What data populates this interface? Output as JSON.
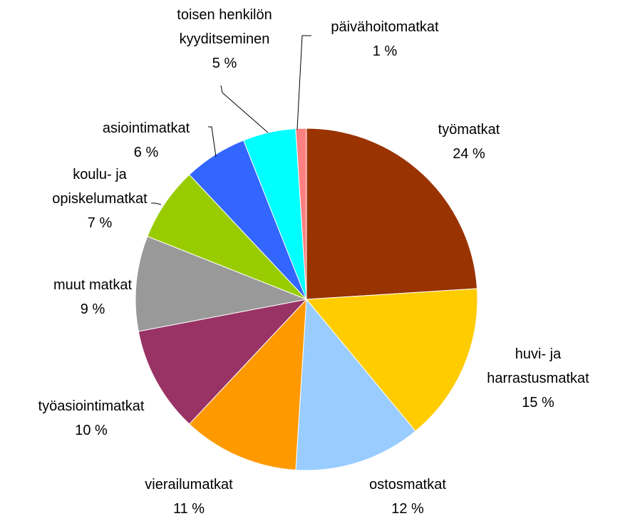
{
  "chart_data": {
    "type": "pie",
    "categories": [
      "työmatkat",
      "huvi- ja\nharrastusmatkat",
      "ostosmatkat",
      "vierailumatkat",
      "työasiointimatkat",
      "muut matkat",
      "koulu- ja\nopiskelumatkat",
      "asiointimatkat",
      "toisen henkilön\nkyyditseminen",
      "päivähoitomatkat"
    ],
    "values": [
      24,
      15,
      12,
      11,
      10,
      9,
      7,
      6,
      5,
      1
    ],
    "value_labels": [
      "24 %",
      "15 %",
      "12 %",
      "11 %",
      "10 %",
      "9 %",
      "7 %",
      "6 %",
      "5 %",
      "1 %"
    ],
    "colors": [
      "#993300",
      "#FFCC00",
      "#99CCFF",
      "#FF9900",
      "#993366",
      "#999999",
      "#99CC00",
      "#3366FF",
      "#00FFFF",
      "#FF8080"
    ]
  }
}
